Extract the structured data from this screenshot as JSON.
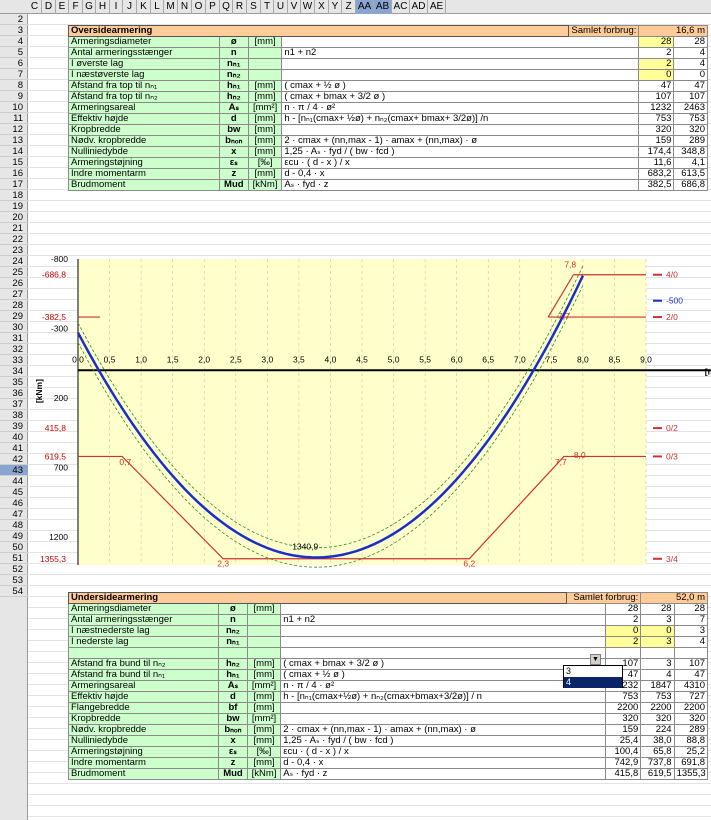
{
  "columns": [
    "C",
    "D",
    "E",
    "F",
    "G",
    "H",
    "I",
    "J",
    "K",
    "L",
    "M",
    "N",
    "O",
    "P",
    "Q",
    "R",
    "S",
    "T",
    "U",
    "V",
    "W",
    "X",
    "Y",
    "Z",
    "AA",
    "AB",
    "AC",
    "AD",
    "AE"
  ],
  "rows_top": [
    "2",
    "3",
    "4",
    "5",
    "6",
    "7",
    "8",
    "9",
    "10",
    "11",
    "12",
    "13",
    "14",
    "15",
    "16",
    "17",
    "18",
    "19",
    "20",
    "21",
    "22",
    "23",
    "24",
    "25",
    "26",
    "27",
    "28",
    "29",
    "30",
    "31",
    "32",
    "33",
    "34",
    "35",
    "36",
    "37",
    "38"
  ],
  "rows_bottom": [
    "39",
    "40",
    "41",
    "42",
    "43",
    "44",
    "45",
    "46",
    "47",
    "48",
    "49",
    "50",
    "51",
    "52",
    "53",
    "54"
  ],
  "top": {
    "title": "Oversidearmering",
    "total_label": "Samlet forbrug:",
    "total_value": "16,6 m",
    "rows": [
      {
        "desc": "Armeringsdiameter",
        "sym": "ø",
        "unit": "[mm]",
        "formula": "",
        "v1": "28",
        "v2": "28",
        "y1": true,
        "y2": false
      },
      {
        "desc": "Antal armeringsstænger",
        "sym": "n",
        "unit": "",
        "formula": "n1   +   n2",
        "v1": "2",
        "v2": "4",
        "y1": false,
        "y2": false
      },
      {
        "desc": "I øverste lag",
        "sym": "nₙ₁",
        "unit": "",
        "formula": "",
        "v1": "2",
        "v2": "4",
        "y1": true,
        "y2": false
      },
      {
        "desc": "I næstøverste lag",
        "sym": "nₙ₂",
        "unit": "",
        "formula": "",
        "v1": "0",
        "v2": "0",
        "y1": true,
        "y2": false
      },
      {
        "desc": "Afstand fra top til nₙ₁",
        "sym": "hₙ₁",
        "unit": "[mm]",
        "formula": "( cmax   +   ½ ø  )",
        "v1": "47",
        "v2": "47",
        "y1": false,
        "y2": false
      },
      {
        "desc": "Afstand fra top til nₙ₂",
        "sym": "hₙ₂",
        "unit": "[mm]",
        "formula": "( cmax   +   bmax   +   3/2 ø  )",
        "v1": "107",
        "v2": "107",
        "y1": false,
        "y2": false
      },
      {
        "desc": "Armeringsareal",
        "sym": "Aₛ",
        "unit": "[mm²]",
        "formula": "n    ·    π / 4    ·    ø²",
        "v1": "1232",
        "v2": "2463",
        "y1": false,
        "y2": false
      },
      {
        "desc": "Effektiv højde",
        "sym": "d",
        "unit": "[mm]",
        "formula": "h - [nₙ₁(cmax+ ½ø) + nₙ₂(cmax+ bmax+ 3/2ø)] /n",
        "v1": "753",
        "v2": "753",
        "y1": false,
        "y2": false
      },
      {
        "desc": "Kropbredde",
        "sym": "bw",
        "unit": "[mm]",
        "formula": "",
        "v1": "320",
        "v2": "320",
        "y1": false,
        "y2": false
      },
      {
        "desc": "Nødv. kropbredde",
        "sym": "bₙₒₙ",
        "unit": "[mm]",
        "formula": "2 · cmax + (nn,max - 1) · amax + (nn,max) · ø",
        "v1": "159",
        "v2": "289",
        "y1": false,
        "y2": false
      },
      {
        "desc": "Nulliniedybde",
        "sym": "x",
        "unit": "[mm]",
        "formula": "1,25  ·   Aₛ   ·   fyd   /   ( bw   ·   fcd )",
        "v1": "174,4",
        "v2": "348,8",
        "y1": false,
        "y2": false
      },
      {
        "desc": "Armeringstøjning",
        "sym": "εₛ",
        "unit": "[‰]",
        "formula": "εcu   ·   ( d    -   x )   /   x",
        "v1": "11,6",
        "v2": "4,1",
        "y1": false,
        "y2": false
      },
      {
        "desc": "Indre momentarm",
        "sym": "z",
        "unit": "[mm]",
        "formula": "d    -   0,4   ·   x",
        "v1": "683,2",
        "v2": "613,5",
        "y1": false,
        "y2": false
      },
      {
        "desc": "Brudmoment",
        "sym": "Mud",
        "unit": "[kNm]",
        "formula": "Aₛ   ·   fyd   ·   z",
        "v1": "382,5",
        "v2": "686,8",
        "y1": false,
        "y2": false
      }
    ]
  },
  "chart_data": {
    "type": "line",
    "xlabel": "[m]",
    "ylabel": "[kNm]",
    "xlim": [
      0,
      9
    ],
    "ylim": [
      -800,
      1400
    ],
    "x_ticks": [
      "0,0",
      "0,5",
      "1,0",
      "1,5",
      "2,0",
      "2,5",
      "3,0",
      "3,5",
      "4,0",
      "4,5",
      "5,0",
      "5,5",
      "6,0",
      "6,5",
      "7,0",
      "7,5",
      "8,0",
      "8,5",
      "9,0"
    ],
    "y_ticks": [
      "-800",
      "-300",
      "200",
      "700",
      "1200"
    ],
    "y_side_labels": [
      "-686,8",
      "-382,5",
      "415,8",
      "619,5",
      "1355,3"
    ],
    "right_labels": [
      "4/0",
      "-500",
      "2/0",
      "0/2",
      "0/3",
      "3/4"
    ],
    "annotations": [
      "7,8",
      "7,7",
      "0,7",
      "7,7",
      "8,0",
      "2,3",
      "6,2",
      "1340,9"
    ],
    "series": [
      {
        "values_x": [
          0,
          1,
          2,
          3,
          3.5,
          4,
          5,
          6,
          7,
          8
        ],
        "values_y": [
          -270,
          200,
          650,
          1050,
          1340,
          1340,
          1150,
          700,
          100,
          -680
        ]
      }
    ]
  },
  "bottom": {
    "title": "Undersidearmering",
    "total_label": "Samlet forbrug:",
    "total_value": "52,0 m",
    "rows": [
      {
        "desc": "Armeringsdiameter",
        "sym": "ø",
        "unit": "[mm]",
        "formula": "",
        "v1": "28",
        "v2": "28",
        "v3": "28"
      },
      {
        "desc": "Antal armeringsstænger",
        "sym": "n",
        "unit": "",
        "formula": "n1   +   n2",
        "v1": "2",
        "v2": "3",
        "v3": "7"
      },
      {
        "desc": "I næstnederste lag",
        "sym": "nₙ₂",
        "unit": "",
        "formula": "",
        "v1": "0",
        "v2": "0",
        "v3": "3"
      },
      {
        "desc": "I nederste lag",
        "sym": "nₙ₁",
        "unit": "",
        "formula": "",
        "v1": "2",
        "v2": "3",
        "v3": "4"
      },
      {
        "desc": "",
        "sym": "",
        "unit": "",
        "formula": "",
        "v1": "",
        "v2": "",
        "v3": ""
      },
      {
        "desc": "Afstand fra bund til nₙ₂",
        "sym": "hₙ₂",
        "unit": "[mm]",
        "formula": "( cmax   +   bmax   +   3/2 ø  )",
        "v1": "107",
        "v2": "3",
        "v3": "107"
      },
      {
        "desc": "Afstand fra bund til nₙ₁",
        "sym": "hₙ₁",
        "unit": "[mm]",
        "formula": "( cmax   +   ½ ø  )",
        "v1": "47",
        "v2": "4",
        "v3": "47"
      },
      {
        "desc": "Armeringsareal",
        "sym": "Aₛ",
        "unit": "[mm²]",
        "formula": "n    ·    π / 4    ·    ø²",
        "v1": "1232",
        "v2": "1847",
        "v3": "4310"
      },
      {
        "desc": "Effektiv højde",
        "sym": "d",
        "unit": "[mm]",
        "formula": "h - [nₙ₁(cmax+½ø) + nₙ₂(cmax+bmax+3/2ø)] / n",
        "v1": "753",
        "v2": "753",
        "v3": "727"
      },
      {
        "desc": "Flangebredde",
        "sym": "bf",
        "unit": "[mm]",
        "formula": "",
        "v1": "2200",
        "v2": "2200",
        "v3": "2200"
      },
      {
        "desc": "Kropbredde",
        "sym": "bw",
        "unit": "[mm²]",
        "formula": "",
        "v1": "320",
        "v2": "320",
        "v3": "320"
      },
      {
        "desc": "Nødv. kropbredde",
        "sym": "bₙₒₙ",
        "unit": "[mm]",
        "formula": "2 · cmax + (nn,max - 1) · amax + (nn,max) · ø",
        "v1": "159",
        "v2": "224",
        "v3": "289"
      },
      {
        "desc": "Nulliniedybde",
        "sym": "x",
        "unit": "[mm]",
        "formula": "1,25  ·   Aₛ   ·   fyd   /   ( bw   ·   fcd )",
        "v1": "25,4",
        "v2": "38,0",
        "v3": "88,8"
      },
      {
        "desc": "Armeringstøjning",
        "sym": "εₛ",
        "unit": "[‰]",
        "formula": "εcu   ·   ( d    -   x )   /   x",
        "v1": "100,4",
        "v2": "65,8",
        "v3": "25,2"
      },
      {
        "desc": "Indre momentarm",
        "sym": "z",
        "unit": "[mm]",
        "formula": "d    -   0,4   ·   x",
        "v1": "742,9",
        "v2": "737,8",
        "v3": "691,8"
      },
      {
        "desc": "Brudmoment",
        "sym": "Mud",
        "unit": "[kNm]",
        "formula": "Aₛ   ·   fyd   ·   z",
        "v1": "415,8",
        "v2": "619,5",
        "v3": "1355,3"
      }
    ]
  },
  "dropdown": {
    "options": [
      "3",
      "4"
    ],
    "selected": "4"
  }
}
